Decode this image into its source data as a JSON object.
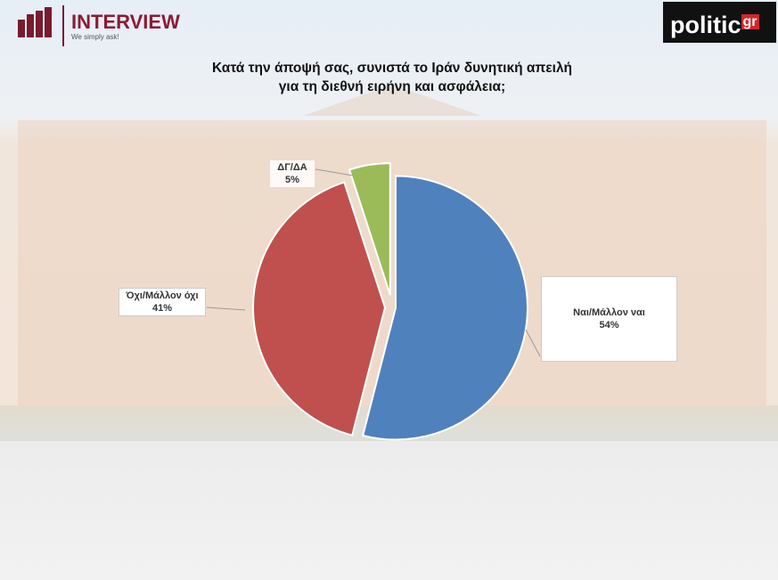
{
  "branding": {
    "interview": "INTERVIEW",
    "tagline": "We simply ask!",
    "politic": "politic",
    "gr": "gr"
  },
  "chart_data": {
    "type": "pie",
    "title": "Κατά την άποψή σας, συνιστά το Ιράν δυνητική απειλή για τη διεθνή ειρήνη και ασφάλεια;",
    "categories": [
      "Ναι/Μάλλον ναι",
      "Όχι/Μάλλον όχι",
      "ΔΓ/ΔΑ"
    ],
    "values": [
      54,
      41,
      5
    ],
    "value_labels": [
      "54%",
      "41%",
      "5%"
    ],
    "colors": [
      "#4f81bd",
      "#c0504d",
      "#9bbb59"
    ]
  }
}
